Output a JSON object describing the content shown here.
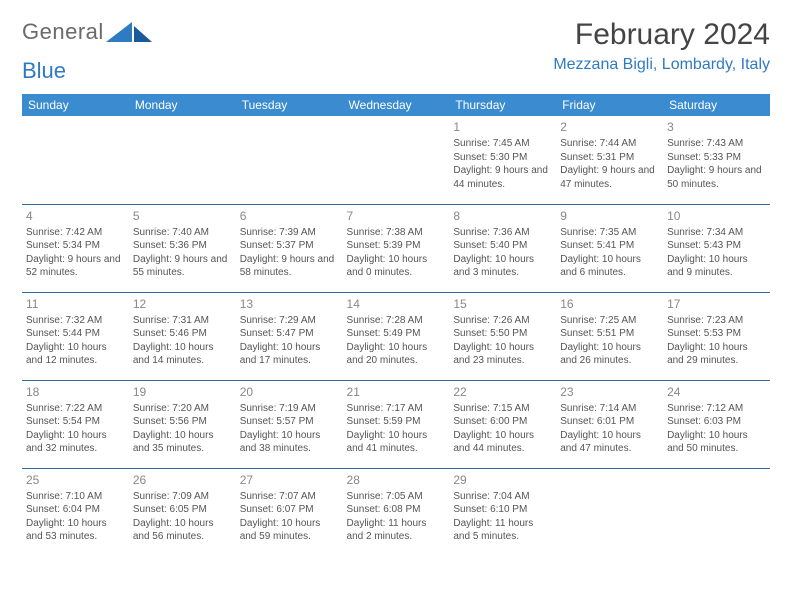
{
  "logo": {
    "text1": "General",
    "text2": "Blue"
  },
  "title": "February 2024",
  "subtitle": "Mezzana Bigli, Lombardy, Italy",
  "colors": {
    "header_bg": "#3a8bd0",
    "header_text": "#ffffff",
    "row_border": "#2f6aa0",
    "accent": "#2f7bc2",
    "daynum": "#888888",
    "body_text": "#555555",
    "title_text": "#444444",
    "logo_gray": "#6a6a6a"
  },
  "weekdays": [
    "Sunday",
    "Monday",
    "Tuesday",
    "Wednesday",
    "Thursday",
    "Friday",
    "Saturday"
  ],
  "weeks": [
    [
      null,
      null,
      null,
      null,
      {
        "n": "1",
        "sr": "7:45 AM",
        "ss": "5:30 PM",
        "dl": "9 hours and 44 minutes."
      },
      {
        "n": "2",
        "sr": "7:44 AM",
        "ss": "5:31 PM",
        "dl": "9 hours and 47 minutes."
      },
      {
        "n": "3",
        "sr": "7:43 AM",
        "ss": "5:33 PM",
        "dl": "9 hours and 50 minutes."
      }
    ],
    [
      {
        "n": "4",
        "sr": "7:42 AM",
        "ss": "5:34 PM",
        "dl": "9 hours and 52 minutes."
      },
      {
        "n": "5",
        "sr": "7:40 AM",
        "ss": "5:36 PM",
        "dl": "9 hours and 55 minutes."
      },
      {
        "n": "6",
        "sr": "7:39 AM",
        "ss": "5:37 PM",
        "dl": "9 hours and 58 minutes."
      },
      {
        "n": "7",
        "sr": "7:38 AM",
        "ss": "5:39 PM",
        "dl": "10 hours and 0 minutes."
      },
      {
        "n": "8",
        "sr": "7:36 AM",
        "ss": "5:40 PM",
        "dl": "10 hours and 3 minutes."
      },
      {
        "n": "9",
        "sr": "7:35 AM",
        "ss": "5:41 PM",
        "dl": "10 hours and 6 minutes."
      },
      {
        "n": "10",
        "sr": "7:34 AM",
        "ss": "5:43 PM",
        "dl": "10 hours and 9 minutes."
      }
    ],
    [
      {
        "n": "11",
        "sr": "7:32 AM",
        "ss": "5:44 PM",
        "dl": "10 hours and 12 minutes."
      },
      {
        "n": "12",
        "sr": "7:31 AM",
        "ss": "5:46 PM",
        "dl": "10 hours and 14 minutes."
      },
      {
        "n": "13",
        "sr": "7:29 AM",
        "ss": "5:47 PM",
        "dl": "10 hours and 17 minutes."
      },
      {
        "n": "14",
        "sr": "7:28 AM",
        "ss": "5:49 PM",
        "dl": "10 hours and 20 minutes."
      },
      {
        "n": "15",
        "sr": "7:26 AM",
        "ss": "5:50 PM",
        "dl": "10 hours and 23 minutes."
      },
      {
        "n": "16",
        "sr": "7:25 AM",
        "ss": "5:51 PM",
        "dl": "10 hours and 26 minutes."
      },
      {
        "n": "17",
        "sr": "7:23 AM",
        "ss": "5:53 PM",
        "dl": "10 hours and 29 minutes."
      }
    ],
    [
      {
        "n": "18",
        "sr": "7:22 AM",
        "ss": "5:54 PM",
        "dl": "10 hours and 32 minutes."
      },
      {
        "n": "19",
        "sr": "7:20 AM",
        "ss": "5:56 PM",
        "dl": "10 hours and 35 minutes."
      },
      {
        "n": "20",
        "sr": "7:19 AM",
        "ss": "5:57 PM",
        "dl": "10 hours and 38 minutes."
      },
      {
        "n": "21",
        "sr": "7:17 AM",
        "ss": "5:59 PM",
        "dl": "10 hours and 41 minutes."
      },
      {
        "n": "22",
        "sr": "7:15 AM",
        "ss": "6:00 PM",
        "dl": "10 hours and 44 minutes."
      },
      {
        "n": "23",
        "sr": "7:14 AM",
        "ss": "6:01 PM",
        "dl": "10 hours and 47 minutes."
      },
      {
        "n": "24",
        "sr": "7:12 AM",
        "ss": "6:03 PM",
        "dl": "10 hours and 50 minutes."
      }
    ],
    [
      {
        "n": "25",
        "sr": "7:10 AM",
        "ss": "6:04 PM",
        "dl": "10 hours and 53 minutes."
      },
      {
        "n": "26",
        "sr": "7:09 AM",
        "ss": "6:05 PM",
        "dl": "10 hours and 56 minutes."
      },
      {
        "n": "27",
        "sr": "7:07 AM",
        "ss": "6:07 PM",
        "dl": "10 hours and 59 minutes."
      },
      {
        "n": "28",
        "sr": "7:05 AM",
        "ss": "6:08 PM",
        "dl": "11 hours and 2 minutes."
      },
      {
        "n": "29",
        "sr": "7:04 AM",
        "ss": "6:10 PM",
        "dl": "11 hours and 5 minutes."
      },
      null,
      null
    ]
  ],
  "labels": {
    "sunrise": "Sunrise:",
    "sunset": "Sunset:",
    "daylight": "Daylight:"
  }
}
